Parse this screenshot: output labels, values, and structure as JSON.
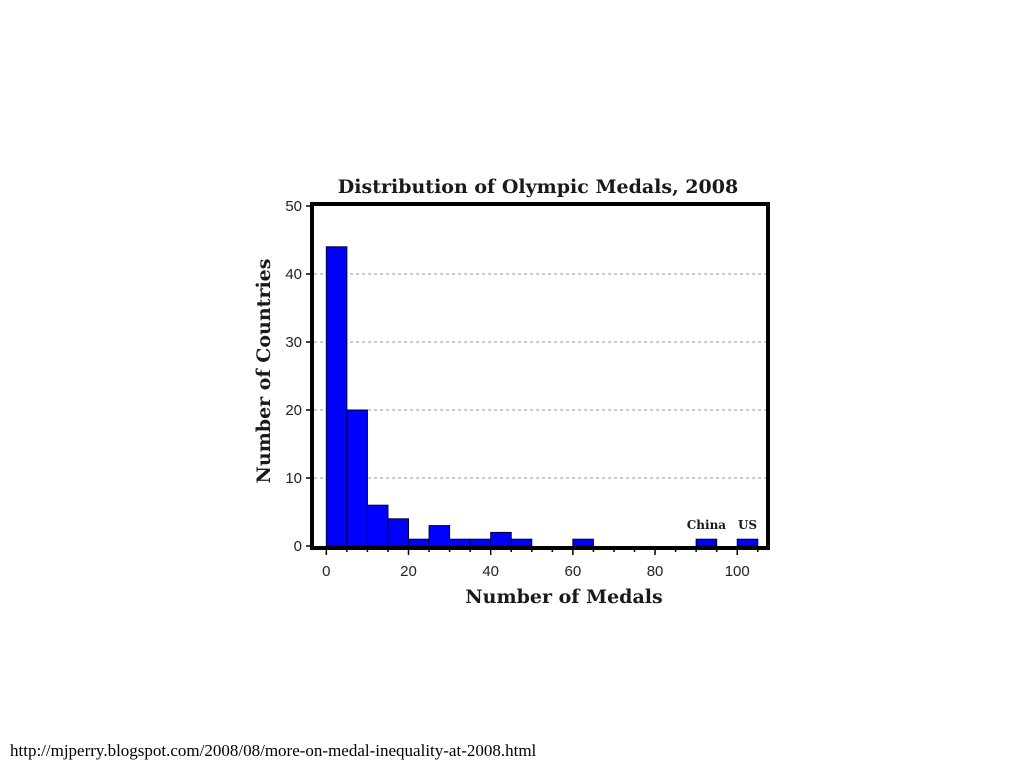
{
  "chart_data": {
    "type": "bar",
    "title": "Distribution of Olympic Medals, 2008",
    "xlabel": "Number of Medals",
    "ylabel": "Number of Countries",
    "bin_width": 5,
    "bins": [
      {
        "start": 0,
        "count": 44
      },
      {
        "start": 5,
        "count": 20
      },
      {
        "start": 10,
        "count": 6
      },
      {
        "start": 15,
        "count": 4
      },
      {
        "start": 20,
        "count": 1
      },
      {
        "start": 25,
        "count": 3
      },
      {
        "start": 30,
        "count": 1
      },
      {
        "start": 35,
        "count": 1
      },
      {
        "start": 40,
        "count": 2
      },
      {
        "start": 45,
        "count": 1
      },
      {
        "start": 60,
        "count": 1
      },
      {
        "start": 90,
        "count": 1
      },
      {
        "start": 100,
        "count": 1
      }
    ],
    "xlim": [
      -3,
      107
    ],
    "ylim": [
      0,
      50
    ],
    "xticks": [
      "0",
      "20",
      "40",
      "60",
      "80",
      "100"
    ],
    "yticks": [
      "0",
      "10",
      "20",
      "30",
      "40",
      "50"
    ],
    "annotations": [
      {
        "text": "China",
        "x": 92.5,
        "y": 1
      },
      {
        "text": "US",
        "x": 102.5,
        "y": 1
      }
    ],
    "grid": "horizontal dashed",
    "bar_color": "#0000ff",
    "bar_edge_color": "#000033"
  },
  "footer": {
    "source_url": "http://mjperry.blogspot.com/2008/08/more-on-medal-inequality-at-2008.html"
  }
}
